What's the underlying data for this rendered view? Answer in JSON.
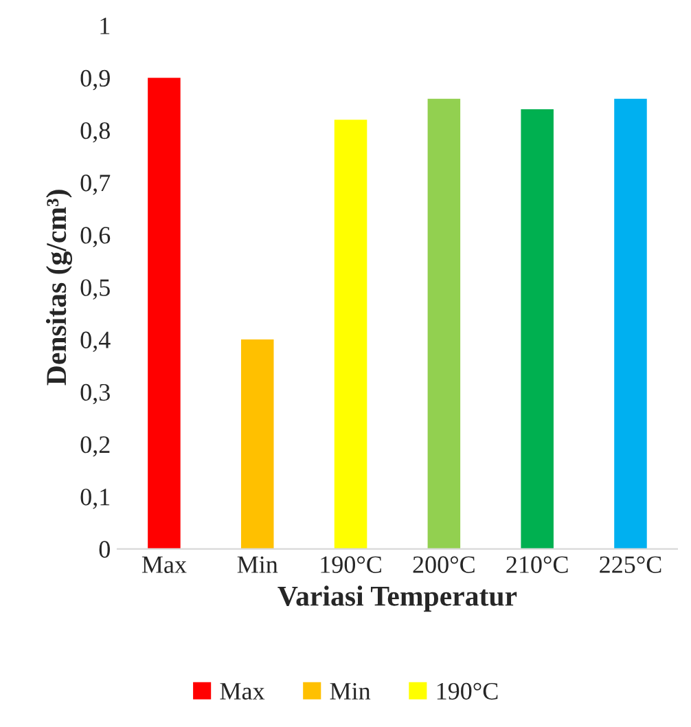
{
  "chart_data": {
    "type": "bar",
    "xlabel": "Variasi Temperatur",
    "ylabel": "Densitas (g/cm³)",
    "categories": [
      "Max",
      "Min",
      "190°C",
      "200°C",
      "210°C",
      "225°C"
    ],
    "series": [
      {
        "name": "Max",
        "color": "#ff0000",
        "values": [
          0.9,
          null,
          null,
          null,
          null,
          null
        ]
      },
      {
        "name": "Min",
        "color": "#ffc000",
        "values": [
          null,
          0.4,
          null,
          null,
          null,
          null
        ]
      },
      {
        "name": "190°C",
        "color": "#ffff00",
        "values": [
          null,
          null,
          0.82,
          null,
          null,
          null
        ]
      },
      {
        "colors": [
          null,
          null,
          null,
          "#92d050",
          "#00b050",
          "#00b0f0"
        ],
        "values": [
          null,
          null,
          null,
          0.86,
          0.84,
          0.86
        ]
      }
    ],
    "ylim": [
      0,
      1
    ],
    "yticks": [
      0,
      {
        "value": 0.1,
        "label": "0,1"
      },
      {
        "value": 0.2,
        "label": "0,2"
      },
      {
        "value": 0.3,
        "label": "0,3"
      },
      {
        "value": 0.4,
        "label": "0,4"
      },
      {
        "value": 0.5,
        "label": "0,5"
      },
      {
        "value": 0.6,
        "label": "0,6"
      },
      {
        "value": 0.7,
        "label": "0,7"
      },
      {
        "value": 0.8,
        "label": "0,8"
      },
      {
        "value": 0.9,
        "label": "0,9"
      },
      1
    ],
    "grid": false,
    "legend": "bottom"
  }
}
